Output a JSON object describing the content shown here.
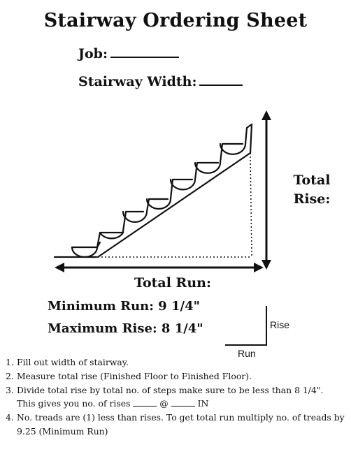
{
  "title": "Stairway Ordering Sheet",
  "job_label": "Job:",
  "width_label": "Stairway Width:",
  "total_rise_line1": "Total",
  "total_rise_line2": "Rise:",
  "total_run_label": "Total Run:",
  "min_run": "Minimum Run: 9 1/4\"",
  "max_rise": "Maximum Rise: 8 1/4\"",
  "rise_label": "Rise",
  "run_label": "Run",
  "steps": [
    {
      "num": "1.",
      "text": "Fill out width of stairway."
    },
    {
      "num": "2.",
      "text": "Measure total rise (Finished Floor to Finished Floor)."
    },
    {
      "num": "3.",
      "text_a": "Divide total rise by total no. of steps make sure to be less than 8 1/4\".",
      "text_b": "This gives you no. of rises",
      "at": "@",
      "unit": "IN"
    },
    {
      "num": "4.",
      "text": "No. treads are (1) less than rises. To get total run multiply no. of treads by 9.25 (Minimum Run)"
    }
  ]
}
